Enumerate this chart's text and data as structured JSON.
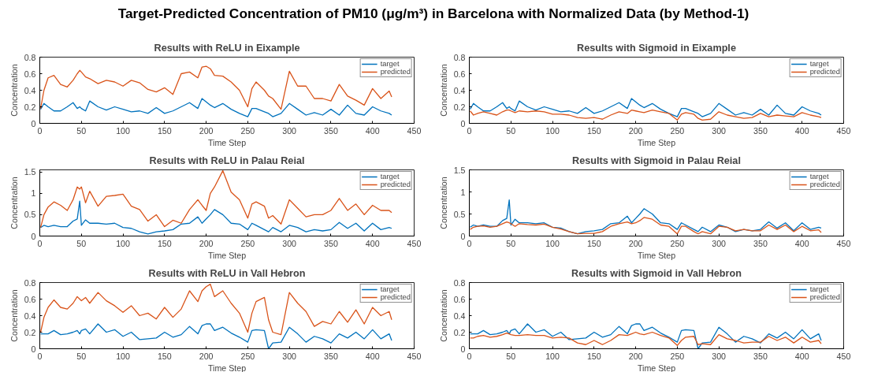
{
  "chart_data": [
    {
      "type": "line",
      "title": "Results with ReLU in Eixample",
      "xlabel": "Time Step",
      "ylabel": "Concentration",
      "annotations": [
        "Target-Predicted Concentration of PM10 (μg/m³) in Barcelona with Normalized Data (by Method-1)"
      ],
      "xlim": [
        0,
        450
      ],
      "xticks": [
        0,
        50,
        100,
        150,
        200,
        250,
        300,
        350,
        400,
        450
      ],
      "ylim": [
        0,
        0.8
      ],
      "yticks": [
        0,
        0.2,
        0.4,
        0.6,
        0.8
      ],
      "legend": "top right",
      "grid": false,
      "x": [
        1,
        5,
        10,
        17,
        25,
        33,
        40,
        45,
        48,
        50,
        55,
        60,
        70,
        80,
        90,
        100,
        110,
        120,
        130,
        140,
        150,
        160,
        170,
        180,
        190,
        195,
        200,
        205,
        210,
        220,
        230,
        240,
        250,
        255,
        260,
        270,
        275,
        280,
        290,
        300,
        310,
        320,
        330,
        340,
        350,
        360,
        370,
        380,
        390,
        400,
        410,
        420,
        423
      ],
      "series": [
        {
          "name": "target",
          "color": "#0072bd",
          "values": [
            0.17,
            0.24,
            0.2,
            0.15,
            0.15,
            0.2,
            0.25,
            0.18,
            0.2,
            0.18,
            0.15,
            0.27,
            0.2,
            0.16,
            0.2,
            0.17,
            0.14,
            0.15,
            0.12,
            0.19,
            0.12,
            0.15,
            0.2,
            0.25,
            0.18,
            0.3,
            0.26,
            0.22,
            0.19,
            0.24,
            0.17,
            0.12,
            0.08,
            0.18,
            0.18,
            0.14,
            0.12,
            0.08,
            0.12,
            0.24,
            0.17,
            0.1,
            0.13,
            0.1,
            0.17,
            0.1,
            0.22,
            0.12,
            0.1,
            0.2,
            0.15,
            0.12,
            0.1
          ]
        },
        {
          "name": "predicted",
          "color": "#d95319",
          "values": [
            0.18,
            0.4,
            0.55,
            0.58,
            0.47,
            0.44,
            0.52,
            0.6,
            0.64,
            0.62,
            0.56,
            0.54,
            0.48,
            0.52,
            0.5,
            0.45,
            0.52,
            0.49,
            0.41,
            0.38,
            0.43,
            0.35,
            0.6,
            0.62,
            0.55,
            0.68,
            0.69,
            0.66,
            0.58,
            0.57,
            0.5,
            0.4,
            0.2,
            0.42,
            0.5,
            0.4,
            0.33,
            0.3,
            0.17,
            0.63,
            0.45,
            0.45,
            0.3,
            0.3,
            0.27,
            0.47,
            0.33,
            0.28,
            0.22,
            0.42,
            0.3,
            0.39,
            0.32
          ]
        }
      ]
    },
    {
      "type": "line",
      "title": "Results with Sigmoid in Eixample",
      "xlabel": "Time Step",
      "ylabel": "Concentration",
      "xlim": [
        0,
        450
      ],
      "xticks": [
        0,
        50,
        100,
        150,
        200,
        250,
        300,
        350,
        400,
        450
      ],
      "ylim": [
        0,
        0.8
      ],
      "yticks": [
        0,
        0.2,
        0.4,
        0.6,
        0.8
      ],
      "legend": "top right",
      "grid": false,
      "x": [
        1,
        5,
        10,
        17,
        25,
        33,
        40,
        45,
        48,
        50,
        55,
        60,
        70,
        80,
        90,
        100,
        110,
        120,
        130,
        140,
        150,
        160,
        170,
        180,
        190,
        195,
        200,
        205,
        210,
        220,
        230,
        240,
        250,
        255,
        260,
        270,
        275,
        280,
        290,
        300,
        310,
        320,
        330,
        340,
        350,
        360,
        370,
        380,
        390,
        400,
        410,
        420,
        423
      ],
      "series": [
        {
          "name": "target",
          "color": "#0072bd",
          "values": [
            0.17,
            0.24,
            0.2,
            0.15,
            0.15,
            0.2,
            0.25,
            0.18,
            0.2,
            0.18,
            0.15,
            0.27,
            0.2,
            0.16,
            0.2,
            0.17,
            0.14,
            0.15,
            0.12,
            0.19,
            0.12,
            0.15,
            0.2,
            0.25,
            0.18,
            0.3,
            0.26,
            0.22,
            0.19,
            0.24,
            0.17,
            0.12,
            0.08,
            0.18,
            0.18,
            0.14,
            0.12,
            0.08,
            0.12,
            0.24,
            0.17,
            0.1,
            0.13,
            0.1,
            0.17,
            0.1,
            0.22,
            0.12,
            0.1,
            0.2,
            0.15,
            0.12,
            0.1
          ]
        },
        {
          "name": "predicted",
          "color": "#d95319",
          "values": [
            0.15,
            0.1,
            0.12,
            0.14,
            0.12,
            0.1,
            0.14,
            0.16,
            0.16,
            0.15,
            0.13,
            0.15,
            0.14,
            0.15,
            0.14,
            0.11,
            0.11,
            0.1,
            0.07,
            0.06,
            0.07,
            0.05,
            0.1,
            0.14,
            0.12,
            0.16,
            0.15,
            0.14,
            0.13,
            0.16,
            0.14,
            0.12,
            0.04,
            0.11,
            0.13,
            0.11,
            0.06,
            0.04,
            0.05,
            0.14,
            0.1,
            0.08,
            0.06,
            0.07,
            0.12,
            0.08,
            0.1,
            0.09,
            0.08,
            0.13,
            0.1,
            0.08,
            0.07
          ]
        }
      ]
    },
    {
      "type": "line",
      "title": "Results with ReLU in Palau Reial",
      "xlabel": "Time Step",
      "ylabel": "Concentration",
      "xlim": [
        0,
        450
      ],
      "xticks": [
        0,
        50,
        100,
        150,
        200,
        250,
        300,
        350,
        400,
        450
      ],
      "ylim": [
        0,
        1.55
      ],
      "yticks": [
        0,
        0.5,
        1,
        1.5
      ],
      "legend": "top right",
      "grid": false,
      "x": [
        1,
        5,
        10,
        17,
        25,
        33,
        40,
        45,
        48,
        50,
        55,
        60,
        70,
        80,
        90,
        100,
        110,
        120,
        130,
        140,
        150,
        160,
        170,
        180,
        190,
        195,
        200,
        205,
        210,
        220,
        230,
        240,
        250,
        255,
        260,
        270,
        275,
        280,
        290,
        300,
        310,
        320,
        330,
        340,
        350,
        360,
        370,
        380,
        390,
        400,
        410,
        420,
        423
      ],
      "series": [
        {
          "name": "target",
          "color": "#0072bd",
          "values": [
            0.2,
            0.25,
            0.22,
            0.25,
            0.22,
            0.22,
            0.35,
            0.4,
            0.82,
            0.25,
            0.38,
            0.3,
            0.3,
            0.28,
            0.3,
            0.2,
            0.18,
            0.1,
            0.05,
            0.1,
            0.12,
            0.15,
            0.28,
            0.3,
            0.45,
            0.3,
            0.4,
            0.5,
            0.62,
            0.5,
            0.3,
            0.28,
            0.15,
            0.3,
            0.25,
            0.15,
            0.1,
            0.2,
            0.1,
            0.25,
            0.2,
            0.1,
            0.15,
            0.12,
            0.15,
            0.32,
            0.18,
            0.3,
            0.12,
            0.3,
            0.15,
            0.2,
            0.18
          ]
        },
        {
          "name": "predicted",
          "color": "#d95319",
          "values": [
            0.2,
            0.5,
            0.68,
            0.8,
            0.72,
            0.6,
            0.85,
            1.15,
            1.1,
            1.15,
            0.78,
            1.05,
            0.7,
            0.93,
            0.95,
            0.98,
            0.7,
            0.62,
            0.35,
            0.5,
            0.22,
            0.37,
            0.3,
            0.62,
            0.85,
            0.72,
            0.6,
            1.0,
            1.15,
            1.53,
            1.03,
            0.85,
            0.42,
            0.75,
            0.8,
            0.7,
            0.42,
            0.48,
            0.28,
            0.85,
            0.65,
            0.45,
            0.5,
            0.5,
            0.6,
            0.88,
            0.6,
            0.75,
            0.5,
            0.72,
            0.6,
            0.6,
            0.55
          ]
        }
      ]
    },
    {
      "type": "line",
      "title": "Results with Sigmoid in Palau Reial",
      "xlabel": "Time Step",
      "ylabel": "Concentration",
      "xlim": [
        0,
        450
      ],
      "xticks": [
        0,
        50,
        100,
        150,
        200,
        250,
        300,
        350,
        400,
        450
      ],
      "ylim": [
        0,
        1.5
      ],
      "yticks": [
        0,
        0.5,
        1,
        1.5
      ],
      "legend": "top right",
      "grid": false,
      "x": [
        1,
        5,
        10,
        17,
        25,
        33,
        40,
        45,
        48,
        50,
        55,
        60,
        70,
        80,
        90,
        100,
        110,
        120,
        130,
        140,
        150,
        160,
        170,
        180,
        190,
        195,
        200,
        205,
        210,
        220,
        230,
        240,
        250,
        255,
        260,
        270,
        275,
        280,
        290,
        300,
        310,
        320,
        330,
        340,
        350,
        360,
        370,
        380,
        390,
        400,
        410,
        420,
        423
      ],
      "series": [
        {
          "name": "target",
          "color": "#0072bd",
          "values": [
            0.2,
            0.25,
            0.22,
            0.25,
            0.22,
            0.22,
            0.35,
            0.4,
            0.82,
            0.25,
            0.38,
            0.3,
            0.3,
            0.28,
            0.3,
            0.2,
            0.18,
            0.1,
            0.05,
            0.1,
            0.12,
            0.15,
            0.28,
            0.3,
            0.45,
            0.3,
            0.4,
            0.5,
            0.62,
            0.5,
            0.3,
            0.28,
            0.15,
            0.3,
            0.25,
            0.15,
            0.1,
            0.2,
            0.1,
            0.25,
            0.2,
            0.1,
            0.15,
            0.12,
            0.15,
            0.32,
            0.18,
            0.3,
            0.12,
            0.3,
            0.15,
            0.2,
            0.18
          ]
        },
        {
          "name": "predicted",
          "color": "#d95319",
          "values": [
            0.15,
            0.2,
            0.22,
            0.23,
            0.2,
            0.22,
            0.28,
            0.32,
            0.3,
            0.28,
            0.22,
            0.28,
            0.26,
            0.25,
            0.27,
            0.2,
            0.16,
            0.1,
            0.05,
            0.06,
            0.06,
            0.1,
            0.22,
            0.28,
            0.32,
            0.28,
            0.3,
            0.35,
            0.42,
            0.38,
            0.25,
            0.22,
            0.05,
            0.22,
            0.22,
            0.1,
            0.05,
            0.1,
            0.05,
            0.22,
            0.2,
            0.12,
            0.15,
            0.12,
            0.12,
            0.25,
            0.15,
            0.25,
            0.1,
            0.22,
            0.12,
            0.14,
            0.08
          ]
        }
      ]
    },
    {
      "type": "line",
      "title": "Results with ReLU in Vall Hebron",
      "xlabel": "Time Step",
      "ylabel": "Concentration",
      "xlim": [
        0,
        450
      ],
      "xticks": [
        0,
        50,
        100,
        150,
        200,
        250,
        300,
        350,
        400,
        450
      ],
      "ylim": [
        0,
        0.8
      ],
      "yticks": [
        0,
        0.2,
        0.4,
        0.6,
        0.8
      ],
      "legend": "top right",
      "grid": false,
      "x": [
        1,
        5,
        10,
        17,
        25,
        33,
        40,
        45,
        48,
        50,
        55,
        60,
        70,
        80,
        90,
        100,
        110,
        120,
        130,
        140,
        150,
        160,
        170,
        180,
        190,
        195,
        200,
        205,
        210,
        220,
        230,
        240,
        250,
        255,
        260,
        270,
        275,
        280,
        290,
        300,
        310,
        320,
        330,
        340,
        350,
        360,
        370,
        380,
        390,
        400,
        410,
        420,
        423
      ],
      "series": [
        {
          "name": "target",
          "color": "#0072bd",
          "values": [
            0.18,
            0.18,
            0.18,
            0.22,
            0.17,
            0.18,
            0.2,
            0.22,
            0.18,
            0.22,
            0.24,
            0.18,
            0.3,
            0.2,
            0.23,
            0.15,
            0.2,
            0.11,
            0.12,
            0.13,
            0.2,
            0.14,
            0.17,
            0.27,
            0.18,
            0.28,
            0.3,
            0.3,
            0.22,
            0.26,
            0.19,
            0.14,
            0.08,
            0.22,
            0.23,
            0.22,
            0.0,
            0.07,
            0.08,
            0.26,
            0.18,
            0.08,
            0.15,
            0.12,
            0.07,
            0.18,
            0.13,
            0.2,
            0.12,
            0.23,
            0.12,
            0.18,
            0.1
          ]
        },
        {
          "name": "predicted",
          "color": "#d95319",
          "values": [
            0.2,
            0.38,
            0.5,
            0.59,
            0.5,
            0.48,
            0.55,
            0.63,
            0.6,
            0.58,
            0.62,
            0.55,
            0.68,
            0.58,
            0.52,
            0.44,
            0.52,
            0.4,
            0.43,
            0.36,
            0.5,
            0.38,
            0.48,
            0.7,
            0.57,
            0.7,
            0.75,
            0.78,
            0.63,
            0.7,
            0.55,
            0.43,
            0.2,
            0.43,
            0.57,
            0.62,
            0.35,
            0.2,
            0.17,
            0.68,
            0.55,
            0.45,
            0.27,
            0.33,
            0.3,
            0.45,
            0.32,
            0.47,
            0.3,
            0.5,
            0.4,
            0.45,
            0.35
          ]
        }
      ]
    },
    {
      "type": "line",
      "title": "Results with Sigmoid in Vall Hebron",
      "xlabel": "Time Step",
      "ylabel": "Concentration",
      "xlim": [
        0,
        450
      ],
      "xticks": [
        0,
        50,
        100,
        150,
        200,
        250,
        300,
        350,
        400,
        450
      ],
      "ylim": [
        0,
        0.8
      ],
      "yticks": [
        0,
        0.2,
        0.4,
        0.6,
        0.8
      ],
      "legend": "top right",
      "grid": false,
      "x": [
        1,
        5,
        10,
        17,
        25,
        33,
        40,
        45,
        48,
        50,
        55,
        60,
        70,
        80,
        90,
        100,
        110,
        120,
        130,
        140,
        150,
        160,
        170,
        180,
        190,
        195,
        200,
        205,
        210,
        220,
        230,
        240,
        250,
        255,
        260,
        270,
        275,
        280,
        290,
        300,
        310,
        320,
        330,
        340,
        350,
        360,
        370,
        380,
        390,
        400,
        410,
        420,
        423
      ],
      "series": [
        {
          "name": "target",
          "color": "#0072bd",
          "values": [
            0.18,
            0.18,
            0.18,
            0.22,
            0.17,
            0.18,
            0.2,
            0.22,
            0.18,
            0.22,
            0.24,
            0.18,
            0.3,
            0.2,
            0.23,
            0.15,
            0.2,
            0.11,
            0.12,
            0.13,
            0.2,
            0.14,
            0.17,
            0.27,
            0.18,
            0.28,
            0.3,
            0.3,
            0.22,
            0.26,
            0.19,
            0.14,
            0.08,
            0.22,
            0.23,
            0.22,
            0.0,
            0.07,
            0.08,
            0.26,
            0.18,
            0.08,
            0.15,
            0.12,
            0.07,
            0.18,
            0.13,
            0.2,
            0.12,
            0.23,
            0.12,
            0.18,
            0.1
          ]
        },
        {
          "name": "predicted",
          "color": "#d95319",
          "values": [
            0.13,
            0.13,
            0.15,
            0.16,
            0.14,
            0.15,
            0.17,
            0.19,
            0.18,
            0.17,
            0.16,
            0.16,
            0.17,
            0.16,
            0.16,
            0.13,
            0.14,
            0.13,
            0.07,
            0.05,
            0.1,
            0.05,
            0.1,
            0.17,
            0.16,
            0.18,
            0.2,
            0.18,
            0.17,
            0.2,
            0.16,
            0.13,
            0.04,
            0.1,
            0.14,
            0.15,
            0.05,
            0.06,
            0.05,
            0.17,
            0.12,
            0.1,
            0.07,
            0.08,
            0.08,
            0.15,
            0.1,
            0.14,
            0.07,
            0.14,
            0.08,
            0.1,
            0.06
          ]
        }
      ]
    }
  ]
}
